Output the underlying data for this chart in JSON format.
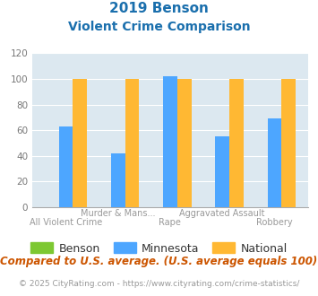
{
  "title_line1": "2019 Benson",
  "title_line2": "Violent Crime Comparison",
  "top_labels": [
    "",
    "Murder & Mans...",
    "",
    "Aggravated Assault",
    ""
  ],
  "bot_labels": [
    "All Violent Crime",
    "",
    "Rape",
    "",
    "Robbery"
  ],
  "benson_values": [
    0,
    0,
    0,
    0,
    0
  ],
  "minnesota_values": [
    63,
    42,
    102,
    55,
    69
  ],
  "national_values": [
    100,
    100,
    100,
    100,
    100
  ],
  "benson_color": "#7dc832",
  "minnesota_color": "#4da6ff",
  "national_color": "#ffb833",
  "ylim": [
    0,
    120
  ],
  "yticks": [
    0,
    20,
    40,
    60,
    80,
    100,
    120
  ],
  "title_color": "#1a6fad",
  "plot_bg": "#dce8f0",
  "note_text": "Compared to U.S. average. (U.S. average equals 100)",
  "footer_text": "© 2025 CityRating.com - https://www.cityrating.com/crime-statistics/",
  "note_color": "#cc5500",
  "footer_color": "#999999",
  "footer_link_color": "#4488cc",
  "legend_labels": [
    "Benson",
    "Minnesota",
    "National"
  ],
  "bar_width": 0.27
}
